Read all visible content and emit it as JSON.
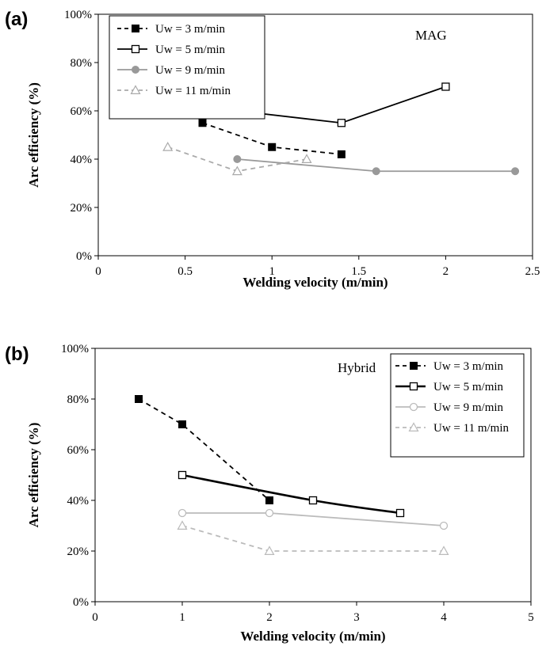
{
  "chart_data": [
    {
      "type": "line",
      "panel_label": "(a)",
      "annotation": "MAG",
      "xlabel": "Welding velocity (m/min)",
      "ylabel": "Arc efficiency (%)",
      "xlim": [
        0,
        2.5
      ],
      "ylim": [
        0,
        100
      ],
      "x_ticks": [
        0,
        0.5,
        1,
        1.5,
        2,
        2.5
      ],
      "x_tick_labels": [
        "0",
        "0.5",
        "1",
        "1.5",
        "2",
        "2.5"
      ],
      "y_ticks": [
        0,
        20,
        40,
        60,
        80,
        100
      ],
      "y_tick_labels": [
        "0%",
        "20%",
        "40%",
        "60%",
        "80%",
        "100%"
      ],
      "grid": false,
      "legend_position": "top-left",
      "series": [
        {
          "name": "Uw = 3 m/min",
          "x": [
            0.6,
            1.0,
            1.4
          ],
          "y": [
            55,
            45,
            42
          ],
          "color": "#000000",
          "dash": "dashed",
          "marker": "square-filled"
        },
        {
          "name": "Uw = 5 m/min",
          "x": [
            0.8,
            1.4,
            2.0
          ],
          "y": [
            60,
            55,
            70
          ],
          "color": "#000000",
          "dash": "solid",
          "marker": "square-open"
        },
        {
          "name": "Uw = 9 m/min",
          "x": [
            0.8,
            1.6,
            2.4
          ],
          "y": [
            40,
            35,
            35
          ],
          "color": "#999999",
          "dash": "solid",
          "marker": "circle-filled"
        },
        {
          "name": "Uw = 11 m/min",
          "x": [
            0.4,
            0.8,
            1.2
          ],
          "y": [
            45,
            35,
            40
          ],
          "color": "#aaaaaa",
          "dash": "dashed",
          "marker": "triangle-open"
        }
      ]
    },
    {
      "type": "line",
      "panel_label": "(b)",
      "annotation": "Hybrid",
      "xlabel": "Welding velocity (m/min)",
      "ylabel": "Arc efficiency (%)",
      "xlim": [
        0,
        5
      ],
      "ylim": [
        0,
        100
      ],
      "x_ticks": [
        0,
        1,
        2,
        3,
        4,
        5
      ],
      "x_tick_labels": [
        "0",
        "1",
        "2",
        "3",
        "4",
        "5"
      ],
      "y_ticks": [
        0,
        20,
        40,
        60,
        80,
        100
      ],
      "y_tick_labels": [
        "0%",
        "20%",
        "40%",
        "60%",
        "80%",
        "100%"
      ],
      "grid": false,
      "legend_position": "top-right",
      "series": [
        {
          "name": "Uw = 3 m/min",
          "x": [
            0.5,
            1.0,
            2.0
          ],
          "y": [
            80,
            70,
            40
          ],
          "color": "#000000",
          "dash": "dashed",
          "marker": "square-filled"
        },
        {
          "name": "Uw = 5 m/min",
          "x": [
            1.0,
            2.5,
            3.5
          ],
          "y": [
            50,
            40,
            35
          ],
          "color": "#000000",
          "dash": "solid",
          "marker": "square-open",
          "smooth": true
        },
        {
          "name": "Uw = 9 m/min",
          "x": [
            1.0,
            2.0,
            4.0
          ],
          "y": [
            35,
            35,
            30
          ],
          "color": "#bbbbbb",
          "dash": "solid",
          "marker": "circle-open"
        },
        {
          "name": "Uw = 11 m/min",
          "x": [
            1.0,
            2.0,
            4.0
          ],
          "y": [
            30,
            20,
            20
          ],
          "color": "#bbbbbb",
          "dash": "dashed",
          "marker": "triangle-open"
        }
      ]
    }
  ]
}
